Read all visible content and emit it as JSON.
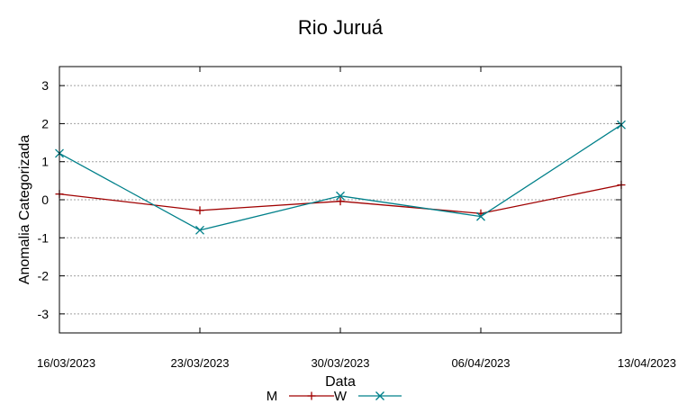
{
  "chart_data": {
    "type": "line",
    "title": "Rio Juruá",
    "xlabel": "Data",
    "ylabel": "Anomalia Categorizada",
    "categories": [
      "16/03/2023",
      "23/03/2023",
      "30/03/2023",
      "06/04/2023",
      "13/04/2023"
    ],
    "ylim": [
      -3.5,
      3.5
    ],
    "yticks": [
      3,
      2,
      1,
      0,
      -1,
      -2,
      -3
    ],
    "ytick_labels": [
      "3",
      "2",
      "1",
      "0",
      "-1",
      "-2",
      "-3"
    ],
    "grid": true,
    "legend_position": "bottom-center",
    "series": [
      {
        "name": "M",
        "values": [
          0.15,
          -0.28,
          -0.04,
          -0.36,
          0.39
        ],
        "color": "#a00000",
        "marker": "plus"
      },
      {
        "name": "W",
        "values": [
          1.22,
          -0.8,
          0.1,
          -0.44,
          1.97
        ],
        "color": "#00808a",
        "marker": "cross"
      }
    ]
  }
}
